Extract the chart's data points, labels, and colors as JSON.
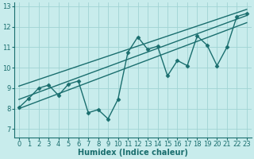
{
  "xlabel": "Humidex (Indice chaleur)",
  "bg_color": "#c8ecec",
  "grid_color": "#a0d4d4",
  "line_color": "#1a6e6e",
  "xlim": [
    -0.5,
    23.5
  ],
  "ylim": [
    6.6,
    13.2
  ],
  "yticks": [
    7,
    8,
    9,
    10,
    11,
    12,
    13
  ],
  "xticks": [
    0,
    1,
    2,
    3,
    4,
    5,
    6,
    7,
    8,
    9,
    10,
    11,
    12,
    13,
    14,
    15,
    16,
    17,
    18,
    19,
    20,
    21,
    22,
    23
  ],
  "scatter_x": [
    0,
    1,
    2,
    3,
    4,
    5,
    6,
    7,
    8,
    9,
    10,
    11,
    12,
    13,
    14,
    15,
    16,
    17,
    18,
    19,
    20,
    21,
    22,
    23
  ],
  "scatter_y": [
    8.05,
    8.5,
    9.0,
    9.15,
    8.65,
    9.2,
    9.35,
    7.8,
    7.95,
    7.5,
    8.45,
    10.75,
    11.5,
    10.9,
    11.05,
    9.6,
    10.35,
    10.1,
    11.55,
    11.1,
    10.1,
    11.0,
    12.5,
    12.65
  ],
  "reg_lines": [
    {
      "x": [
        0,
        23
      ],
      "y": [
        8.45,
        12.55
      ]
    },
    {
      "x": [
        0,
        23
      ],
      "y": [
        9.1,
        12.85
      ]
    },
    {
      "x": [
        0,
        23
      ],
      "y": [
        8.0,
        12.2
      ]
    }
  ],
  "marker": "D",
  "markersize": 2.5,
  "linewidth": 1.0,
  "reg_linewidth": 1.0,
  "xlabel_fontsize": 7,
  "tick_fontsize": 6,
  "fig_width": 3.2,
  "fig_height": 2.0,
  "dpi": 100
}
